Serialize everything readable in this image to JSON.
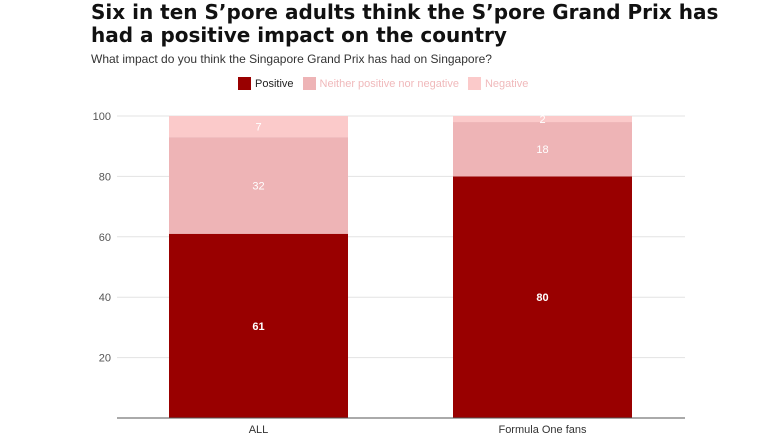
{
  "title": "Six in ten S’pore adults think the S’pore Grand Prix has had a positive impact on the country",
  "subtitle": "What impact do you think the Singapore Grand Prix has had on Singapore?",
  "colors": {
    "positive": "#990000",
    "neither": "#eeb4b6",
    "negative": "#fbcaca",
    "legend_text_dark": "#222222",
    "legend_text_light": "#f0b9bb"
  },
  "chart_data": {
    "type": "bar",
    "stacked": true,
    "categories": [
      "ALL",
      "Formula One fans"
    ],
    "series": [
      {
        "name": "Positive",
        "values": [
          61,
          80
        ],
        "color": "#990000"
      },
      {
        "name": "Neither positive nor negative",
        "values": [
          32,
          18
        ],
        "color": "#eeb4b6"
      },
      {
        "name": "Negative",
        "values": [
          7,
          2
        ],
        "color": "#fbcaca"
      }
    ],
    "ylim": [
      0,
      100
    ],
    "yticks": [
      20,
      40,
      60,
      80,
      100
    ],
    "grid": true,
    "legend_position": "top-left",
    "xlabel": "",
    "ylabel": ""
  }
}
